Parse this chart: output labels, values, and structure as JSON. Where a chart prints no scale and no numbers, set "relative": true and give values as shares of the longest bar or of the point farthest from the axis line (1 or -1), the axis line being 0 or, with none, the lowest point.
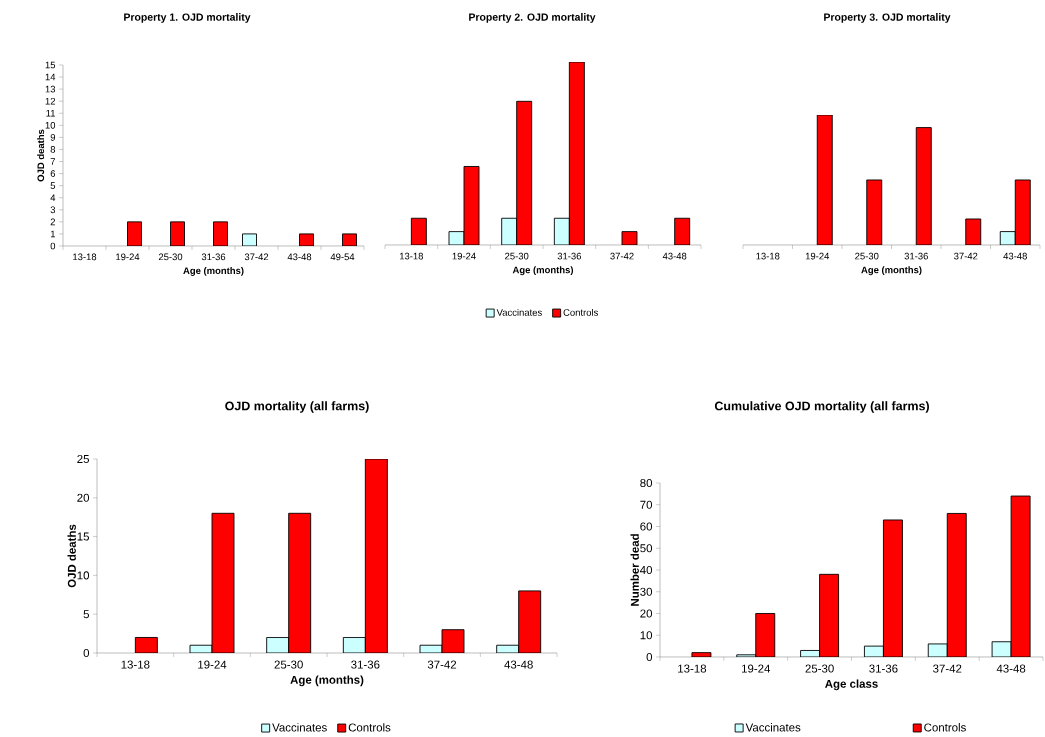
{
  "chart_data": [
    {
      "type": "bar",
      "title": "Property 1. OJD mortality",
      "xlabel": "Age (months)",
      "ylabel": "OJD deaths",
      "categories": [
        "13-18",
        "19-24",
        "25-30",
        "31-36",
        "37-42",
        "43-48",
        "49-54"
      ],
      "series": [
        {
          "color": "#ccffff",
          "values": [
            null,
            null,
            null,
            null,
            1,
            null,
            null
          ]
        },
        {
          "color": "#ff0000",
          "values": [
            null,
            2,
            2,
            2,
            null,
            1,
            1
          ]
        }
      ],
      "ylim": [
        0,
        15
      ],
      "yticks": [
        0,
        1,
        2,
        3,
        4,
        5,
        6,
        7,
        8,
        9,
        10,
        11,
        12,
        13,
        14,
        15
      ],
      "grid": false,
      "legend": false
    },
    {
      "type": "bar",
      "title": "Property 2. OJD mortality",
      "xlabel": "Age (months)",
      "categories": [
        "13-18",
        "19-24",
        "25-30",
        "31-36",
        "37-42",
        "43-48"
      ],
      "relative": true,
      "series": [
        {
          "name": "Vaccinates",
          "color": "#ccffff",
          "values": [
            null,
            0.073,
            0.146,
            0.146,
            null,
            null
          ]
        },
        {
          "name": "Controls",
          "color": "#ff0000",
          "values": [
            0.146,
            0.429,
            0.785,
            1,
            0.073,
            0.146
          ]
        }
      ],
      "grid": false,
      "legend": "bottom"
    },
    {
      "type": "bar",
      "title": "Property 3. OJD mortality",
      "xlabel": "Age (months)",
      "categories": [
        "13-18",
        "19-24",
        "25-30",
        "31-36",
        "37-42",
        "43-48"
      ],
      "relative": true,
      "series": [
        {
          "color": "#ccffff",
          "values": [
            null,
            null,
            null,
            null,
            null,
            0.103
          ]
        },
        {
          "color": "#ff0000",
          "values": [
            null,
            1,
            0.5,
            0.903,
            0.2,
            0.5
          ]
        }
      ],
      "grid": false,
      "legend": false
    },
    {
      "type": "bar",
      "title": "OJD mortality (all farms)",
      "xlabel": "Age (months)",
      "ylabel": "OJD deaths",
      "categories": [
        "13-18",
        "19-24",
        "25-30",
        "31-36",
        "37-42",
        "43-48"
      ],
      "series": [
        {
          "name": "Vaccinates",
          "color": "#ccffff",
          "values": [
            null,
            1,
            2,
            2,
            1,
            1
          ]
        },
        {
          "name": "Controls",
          "color": "#ff0000",
          "values": [
            2,
            18,
            18,
            25,
            3,
            8
          ]
        }
      ],
      "ylim": [
        0,
        25
      ],
      "yticks": [
        0,
        5,
        10,
        15,
        20,
        25
      ],
      "grid": false,
      "legend": "bottom"
    },
    {
      "type": "bar",
      "title": "Cumulative OJD mortality (all farms)",
      "xlabel": "Age class",
      "ylabel": "Number dead",
      "categories": [
        "13-18",
        "19-24",
        "25-30",
        "31-36",
        "37-42",
        "43-48"
      ],
      "series": [
        {
          "name": "Vaccinates",
          "color": "#ccffff",
          "values": [
            null,
            1,
            3,
            5,
            6,
            7
          ]
        },
        {
          "name": "Controls",
          "color": "#ff0000",
          "values": [
            2,
            20,
            38,
            63,
            66,
            74
          ]
        }
      ],
      "ylim": [
        0,
        80
      ],
      "yticks": [
        0,
        10,
        20,
        30,
        40,
        50,
        60,
        70,
        80
      ],
      "grid": false,
      "legend": "bottom"
    }
  ]
}
